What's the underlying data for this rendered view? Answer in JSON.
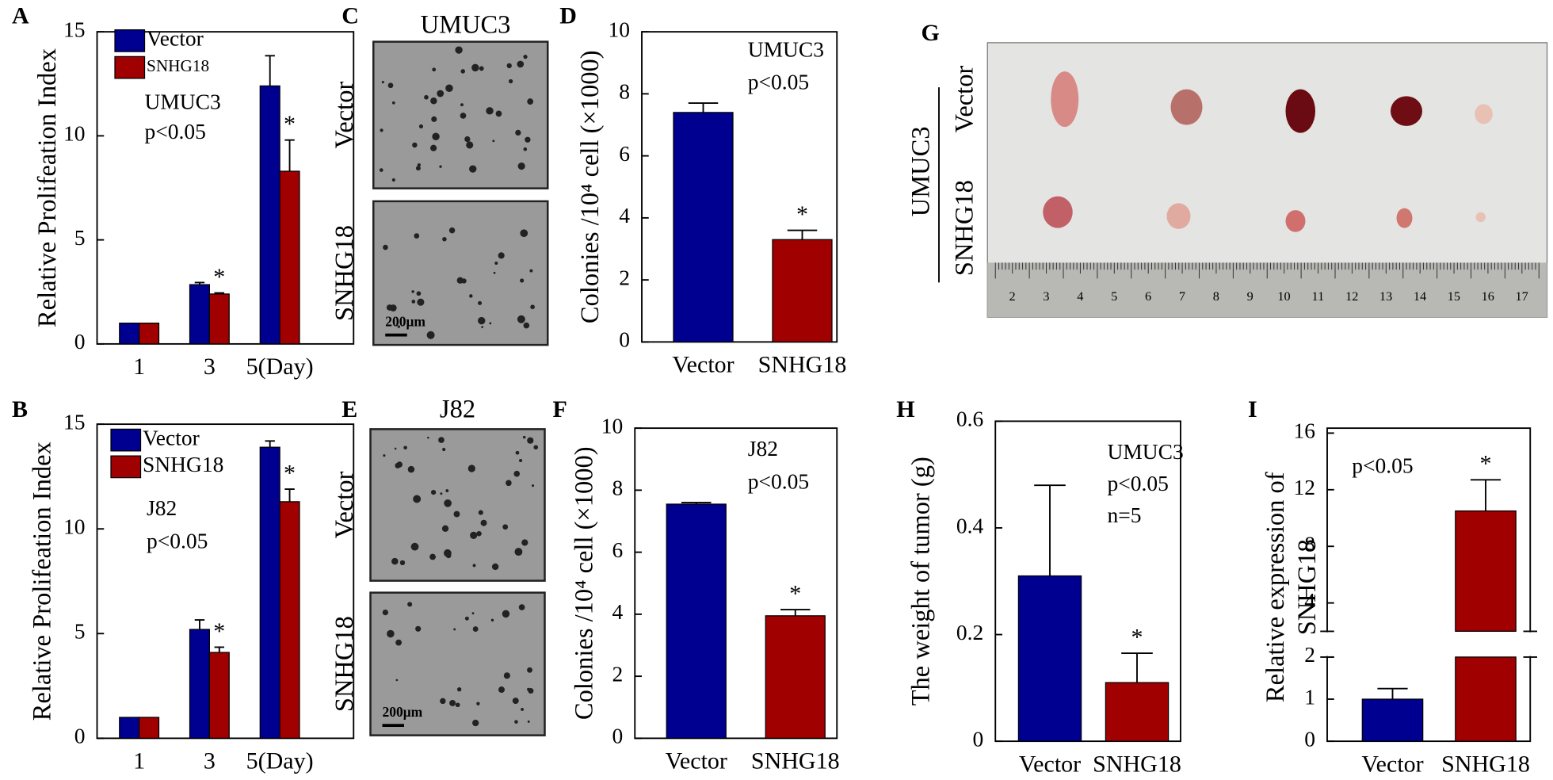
{
  "chart_data": [
    {
      "type": "bar",
      "panel": "A",
      "ylabel": "Relative  Prolifeation Index",
      "categories": [
        "1",
        "3",
        "5(Day)"
      ],
      "series": [
        {
          "name": "Vector",
          "color": "#000090",
          "values": [
            1,
            2.85,
            12.4
          ],
          "errors": [
            0,
            0.1,
            1.45
          ]
        },
        {
          "name": "SNHG18",
          "color": "#a00000",
          "values": [
            1,
            2.4,
            8.3
          ],
          "errors": [
            0,
            0.05,
            1.5
          ],
          "significance": [
            null,
            "*",
            "*"
          ]
        }
      ],
      "ylim": [
        0,
        15
      ],
      "yticks": [
        0,
        5,
        10,
        15
      ],
      "annotations": [
        "UMUC3",
        "p<0.05"
      ],
      "legend": "upper left"
    },
    {
      "type": "bar",
      "panel": "B",
      "ylabel": "Relative  Prolifeation Index",
      "categories": [
        "1",
        "3",
        "5(Day)"
      ],
      "series": [
        {
          "name": "Vector",
          "color": "#000090",
          "values": [
            1,
            5.2,
            13.9
          ],
          "errors": [
            0,
            0.45,
            0.3
          ]
        },
        {
          "name": "SNHG18",
          "color": "#a00000",
          "values": [
            1,
            4.1,
            11.3
          ],
          "errors": [
            0,
            0.25,
            0.6
          ],
          "significance": [
            null,
            "*",
            "*"
          ]
        }
      ],
      "ylim": [
        0,
        15
      ],
      "yticks": [
        0,
        5,
        10,
        15
      ],
      "annotations": [
        "J82",
        "p<0.05"
      ],
      "legend": "upper left"
    },
    {
      "type": "bar",
      "panel": "D",
      "ylabel": "Colonies /10⁴ cell (×1000)",
      "categories": [
        "Vector",
        "SNHG18"
      ],
      "values": [
        7.4,
        3.3
      ],
      "errors": [
        0.3,
        0.3
      ],
      "colors": [
        "#000090",
        "#a00000"
      ],
      "significance": [
        null,
        "*"
      ],
      "ylim": [
        0,
        10
      ],
      "yticks": [
        0,
        2,
        4,
        6,
        8,
        10
      ],
      "annotations": [
        "UMUC3",
        "p<0.05"
      ]
    },
    {
      "type": "bar",
      "panel": "F",
      "ylabel": "Colonies /10⁴ cell (×1000)",
      "categories": [
        "Vector",
        "SNHG18"
      ],
      "values": [
        7.55,
        3.95
      ],
      "errors": [
        0.05,
        0.2
      ],
      "colors": [
        "#000090",
        "#a00000"
      ],
      "significance": [
        null,
        "*"
      ],
      "ylim": [
        0,
        10
      ],
      "yticks": [
        0,
        2,
        4,
        6,
        8,
        10
      ],
      "annotations": [
        "J82",
        "p<0.05"
      ]
    },
    {
      "type": "bar",
      "panel": "H",
      "ylabel": "The weight of tumor (g)",
      "categories": [
        "Vector",
        "SNHG18"
      ],
      "values": [
        0.31,
        0.11
      ],
      "errors": [
        0.17,
        0.055
      ],
      "colors": [
        "#000090",
        "#a00000"
      ],
      "significance": [
        null,
        "*"
      ],
      "ylim": [
        0,
        0.6
      ],
      "yticks": [
        0,
        0.2,
        0.4,
        0.6
      ],
      "annotations": [
        "UMUC3",
        "p<0.05",
        "n=5"
      ]
    },
    {
      "type": "bar",
      "panel": "I",
      "ylabel": [
        "Relative expression of",
        "SNHG18"
      ],
      "categories": [
        "Vector",
        "SNHG18"
      ],
      "values": [
        1,
        10.5
      ],
      "errors": [
        0.25,
        2.2
      ],
      "colors": [
        "#000090",
        "#a00000"
      ],
      "significance": [
        null,
        "*"
      ],
      "ylim": [
        0,
        16
      ],
      "ybreak": 2,
      "yticks": [
        0,
        1,
        2,
        4,
        8,
        12,
        16
      ],
      "annotations": [
        "p<0.05"
      ]
    }
  ],
  "photos": [
    {
      "panel": "C",
      "title": "UMUC3",
      "rows": [
        "Vector",
        "SNHG18"
      ],
      "scale_bar": "200μm"
    },
    {
      "panel": "E",
      "title": "J82",
      "rows": [
        "Vector",
        "SNHG18"
      ],
      "scale_bar": "200μm"
    }
  ],
  "tumor_photo": {
    "panel": "G",
    "cell_line": "UMUC3",
    "rows": [
      "Vector",
      "SNHG18"
    ],
    "ruler": [
      "2",
      "3",
      "4",
      "5",
      "6",
      "7",
      "8",
      "9",
      "10",
      "11",
      "12",
      "13",
      "14",
      "15",
      "16",
      "17"
    ]
  }
}
